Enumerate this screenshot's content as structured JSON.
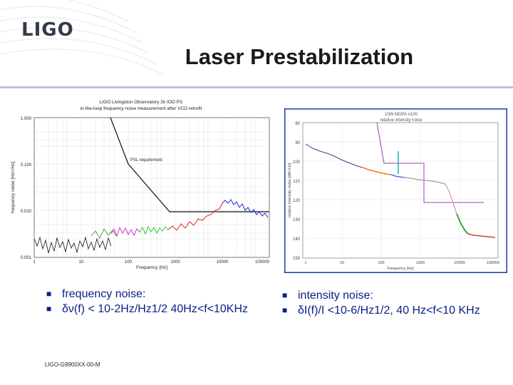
{
  "logo": "LIGO",
  "title": "Laser Prestabilization",
  "left_panel": {
    "title_line1": "LIGO Livingston Observatory 2k IOO PS",
    "title_line2": "in-the-loop frequency noise measurement after VCO retrofit",
    "ylabel": "frequency noise [Hz/√Hz]",
    "xlabel": "Frequency [Hz]",
    "ytick_labels": [
      "1.000",
      "0.100",
      "0.010",
      "0.001"
    ],
    "xtick_labels": [
      "1",
      "10",
      "100",
      "1000",
      "10000",
      "100000"
    ],
    "annotation": "PSL requirement"
  },
  "right_panel": {
    "title_line1": "10W MOPA #100",
    "title_line2": "relative intensity noise",
    "ylabel": "relative intensity noise [dB/√Hz]",
    "xlabel": "Frequency [Hz]",
    "ytick_labels": [
      "80",
      "90",
      "100",
      "110",
      "120",
      "130",
      "140",
      "150"
    ],
    "xtick_labels": [
      "1",
      "10",
      "100",
      "1000",
      "10000",
      "100000"
    ]
  },
  "bullets_left": [
    {
      "text": "frequency noise:"
    },
    {
      "text": "δν(f) < 10-2Hz/Hz1/2  40Hz<f<10KHz"
    }
  ],
  "bullets_right": [
    {
      "text": "intensity noise:"
    },
    {
      "text": "δI(f)/I <10-6/Hz1/2, 40 Hz<f<10 KHz"
    }
  ],
  "footer": "LIGO-G9900XX-00-M",
  "colors": {
    "title": "#1a1a1a",
    "bullet_text": "#0a1e86",
    "rule": "#b9c4d2",
    "right_panel_border": "#1e3aa8",
    "logo": "#333b48"
  }
}
